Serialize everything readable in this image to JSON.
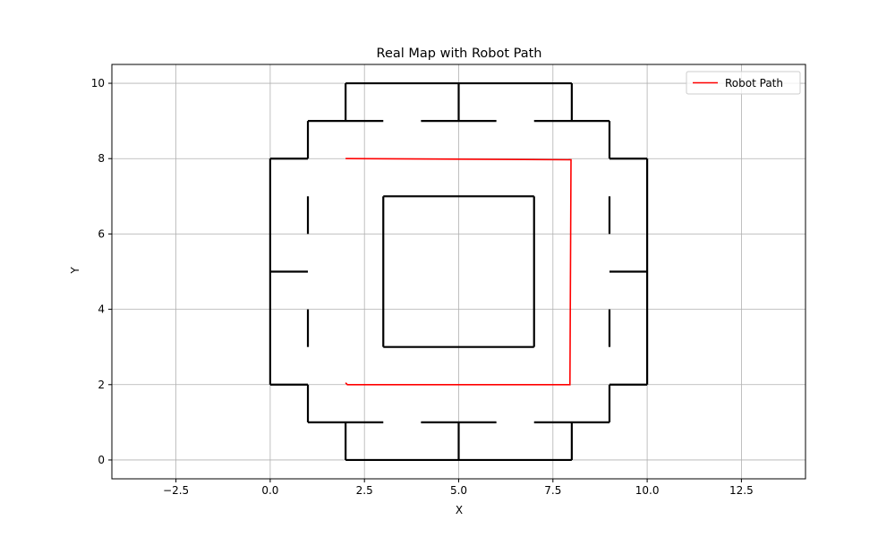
{
  "chart_data": {
    "type": "line",
    "title": "Real Map with Robot Path",
    "xlabel": "X",
    "ylabel": "Y",
    "xlim": [
      -4.2,
      14.2
    ],
    "ylim": [
      -0.5,
      10.5
    ],
    "xticks": [
      -2.5,
      0.0,
      2.5,
      5.0,
      7.5,
      10.0,
      12.5
    ],
    "xtick_labels": [
      "−2.5",
      "0.0",
      "2.5",
      "5.0",
      "7.5",
      "10.0",
      "12.5"
    ],
    "yticks": [
      0,
      2,
      4,
      6,
      8,
      10
    ],
    "ytick_labels": [
      "0",
      "2",
      "4",
      "6",
      "8",
      "10"
    ],
    "grid": true,
    "legend": {
      "position": "top-right",
      "entries": [
        {
          "label": "Robot Path",
          "color": "#ff0000"
        }
      ]
    },
    "walls_color": "#000000",
    "walls": [
      [
        [
          2,
          0
        ],
        [
          8,
          0
        ]
      ],
      [
        [
          2,
          0
        ],
        [
          2,
          1
        ]
      ],
      [
        [
          8,
          0
        ],
        [
          8,
          1
        ]
      ],
      [
        [
          5,
          0
        ],
        [
          5,
          1
        ]
      ],
      [
        [
          1,
          1
        ],
        [
          3,
          1
        ]
      ],
      [
        [
          4,
          1
        ],
        [
          6,
          1
        ]
      ],
      [
        [
          7,
          1
        ],
        [
          9,
          1
        ]
      ],
      [
        [
          2,
          10
        ],
        [
          8,
          10
        ]
      ],
      [
        [
          2,
          10
        ],
        [
          2,
          9
        ]
      ],
      [
        [
          8,
          10
        ],
        [
          8,
          9
        ]
      ],
      [
        [
          5,
          10
        ],
        [
          5,
          9
        ]
      ],
      [
        [
          1,
          9
        ],
        [
          3,
          9
        ]
      ],
      [
        [
          4,
          9
        ],
        [
          6,
          9
        ]
      ],
      [
        [
          7,
          9
        ],
        [
          9,
          9
        ]
      ],
      [
        [
          0,
          2
        ],
        [
          0,
          8
        ]
      ],
      [
        [
          0,
          2
        ],
        [
          1,
          2
        ]
      ],
      [
        [
          0,
          8
        ],
        [
          1,
          8
        ]
      ],
      [
        [
          0,
          5
        ],
        [
          1,
          5
        ]
      ],
      [
        [
          1,
          1
        ],
        [
          1,
          2
        ]
      ],
      [
        [
          1,
          3
        ],
        [
          1,
          4
        ]
      ],
      [
        [
          1,
          6
        ],
        [
          1,
          7
        ]
      ],
      [
        [
          1,
          8
        ],
        [
          1,
          9
        ]
      ],
      [
        [
          10,
          2
        ],
        [
          10,
          8
        ]
      ],
      [
        [
          9,
          2
        ],
        [
          10,
          2
        ]
      ],
      [
        [
          9,
          8
        ],
        [
          10,
          8
        ]
      ],
      [
        [
          9,
          5
        ],
        [
          10,
          5
        ]
      ],
      [
        [
          9,
          1
        ],
        [
          9,
          2
        ]
      ],
      [
        [
          9,
          3
        ],
        [
          9,
          4
        ]
      ],
      [
        [
          9,
          6
        ],
        [
          9,
          7
        ]
      ],
      [
        [
          9,
          8
        ],
        [
          9,
          9
        ]
      ],
      [
        [
          3,
          3
        ],
        [
          7,
          3
        ]
      ],
      [
        [
          7,
          3
        ],
        [
          7,
          7
        ]
      ],
      [
        [
          7,
          7
        ],
        [
          3,
          7
        ]
      ],
      [
        [
          3,
          7
        ],
        [
          3,
          3
        ]
      ]
    ],
    "series": [
      {
        "name": "Robot Path",
        "color": "#ff0000",
        "x": [
          2.0,
          2.05,
          7.95,
          7.98,
          2.0
        ],
        "y": [
          2.05,
          2.0,
          2.0,
          7.97,
          8.0
        ]
      }
    ]
  }
}
